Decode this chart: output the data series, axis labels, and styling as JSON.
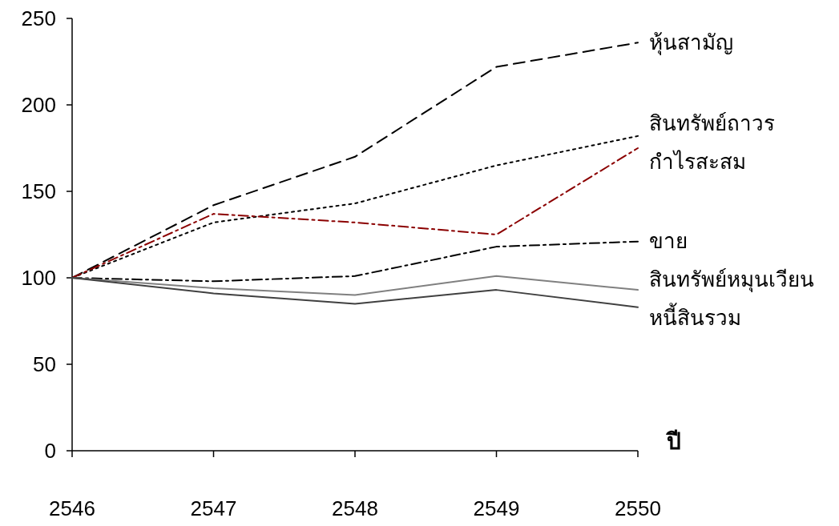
{
  "chart_data": {
    "type": "line",
    "xlabel": "ปี",
    "categories": [
      "2546",
      "2547",
      "2548",
      "2549",
      "2550"
    ],
    "ylim": [
      0,
      250
    ],
    "yticks": [
      0,
      50,
      100,
      150,
      200,
      250
    ],
    "grid": false,
    "legend": false,
    "marker": "none",
    "series": [
      {
        "name": "หุ้นสามัญ",
        "color": "#000000",
        "line_style": "dashed",
        "values": [
          100,
          142,
          170,
          222,
          236
        ]
      },
      {
        "name": "สินทรัพย์ถาวร",
        "color": "#000000",
        "line_style": "dotted",
        "values": [
          100,
          132,
          143,
          165,
          182
        ]
      },
      {
        "name": "กำไรสะสม",
        "color": "#8b0000",
        "line_style": "dashdot",
        "values": [
          100,
          137,
          132,
          125,
          175
        ]
      },
      {
        "name": "ขาย",
        "color": "#000000",
        "line_style": "dashdot",
        "values": [
          100,
          98,
          101,
          118,
          121
        ]
      },
      {
        "name": "สินทรัพย์หมุนเวียน",
        "color": "#808080",
        "line_style": "solid",
        "values": [
          100,
          94,
          90,
          101,
          93
        ]
      },
      {
        "name": "หนี้สินรวม",
        "color": "#404040",
        "line_style": "solid",
        "values": [
          100,
          91,
          85,
          93,
          83
        ]
      }
    ]
  }
}
